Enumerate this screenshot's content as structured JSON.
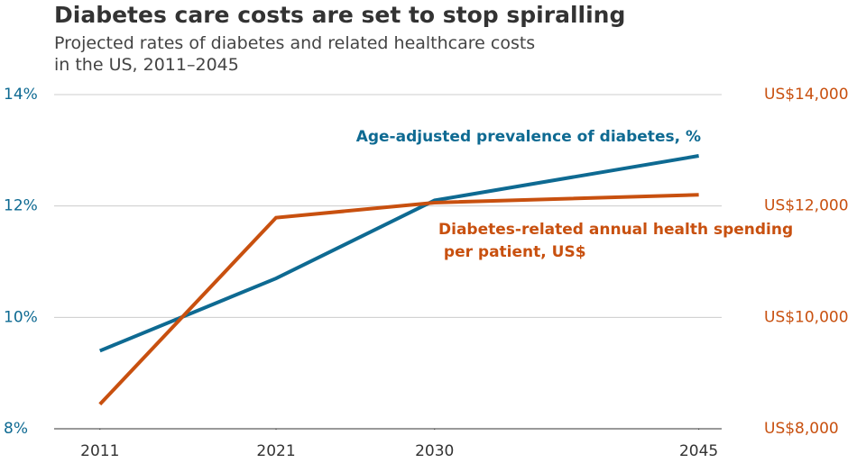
{
  "chart_data": {
    "type": "line",
    "title": "Diabetes care costs are set to stop spiralling",
    "subtitle": "Projected rates of diabetes and related healthcare costs\nin the US, 2011–2045",
    "x": [
      2011,
      2021,
      2030,
      2045
    ],
    "xlim": [
      2008.4,
      2046.3
    ],
    "xticks": [
      2011,
      2021,
      2030,
      2045
    ],
    "ylim": [
      8,
      14
    ],
    "yticks": [
      {
        "value": 8,
        "label": "8%"
      },
      {
        "value": 10,
        "label": "10%"
      },
      {
        "value": 12,
        "label": "12%"
      },
      {
        "value": 14,
        "label": "14%"
      }
    ],
    "y2lim": [
      8000,
      14000
    ],
    "y2ticks": [
      {
        "value": 8000,
        "label": "US$8,000"
      },
      {
        "value": 10000,
        "label": "US$10,000"
      },
      {
        "value": 12000,
        "label": "US$12,000"
      },
      {
        "value": 14000,
        "label": "US$14,000"
      }
    ],
    "grid": true,
    "series": [
      {
        "name": "Age-adjusted prevalence of diabetes, %",
        "color": "#0e6a92",
        "values": [
          9.4,
          10.7,
          12.1,
          12.9
        ]
      },
      {
        "name": "Diabetes-related annual health spending per patient, US$",
        "color": "#c8500f",
        "axis": "y2",
        "values": [
          8440,
          11790,
          12060,
          12200
        ]
      }
    ]
  }
}
